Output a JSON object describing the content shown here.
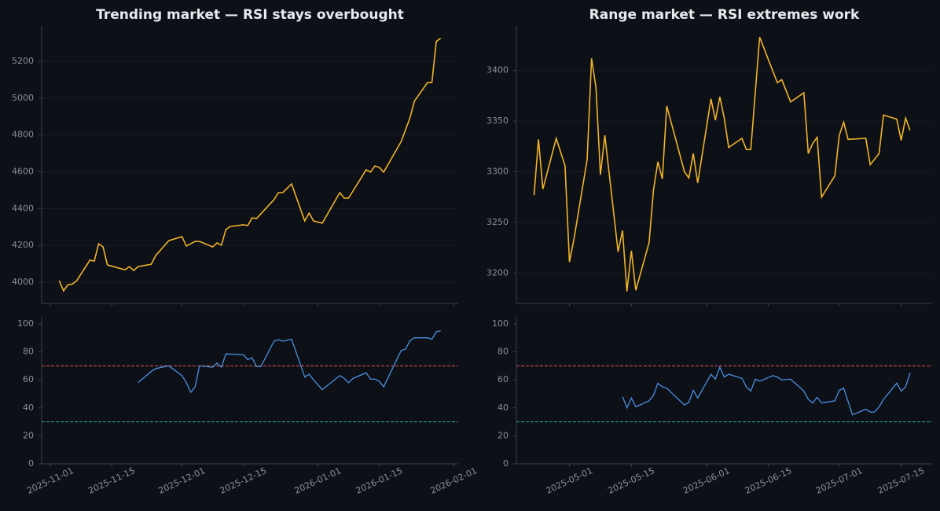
{
  "chart_data": [
    {
      "type": "line",
      "title": "Trending market — RSI stays overbought",
      "grid": true,
      "xlim": [
        "2025-10-30",
        "2026-02-02"
      ],
      "ylim": [
        3885,
        5392
      ],
      "yticks": [
        4000,
        4200,
        4400,
        4600,
        4800,
        5000,
        5200
      ],
      "x": [
        "2025-11-03",
        "2025-11-04",
        "2025-11-05",
        "2025-11-06",
        "2025-11-07",
        "2025-11-10",
        "2025-11-11",
        "2025-11-12",
        "2025-11-13",
        "2025-11-14",
        "2025-11-18",
        "2025-11-19",
        "2025-11-20",
        "2025-11-21",
        "2025-11-24",
        "2025-11-25",
        "2025-11-28",
        "2025-12-01",
        "2025-12-02",
        "2025-12-04",
        "2025-12-05",
        "2025-12-08",
        "2025-12-09",
        "2025-12-10",
        "2025-12-11",
        "2025-12-12",
        "2025-12-15",
        "2025-12-16",
        "2025-12-17",
        "2025-12-18",
        "2025-12-19",
        "2025-12-22",
        "2025-12-23",
        "2025-12-24",
        "2025-12-26",
        "2025-12-29",
        "2025-12-30",
        "2025-12-31",
        "2026-01-02",
        "2026-01-06",
        "2026-01-07",
        "2026-01-08",
        "2026-01-12",
        "2026-01-13",
        "2026-01-14",
        "2026-01-15",
        "2026-01-16",
        "2026-01-20",
        "2026-01-22",
        "2026-01-23",
        "2026-01-26",
        "2026-01-27",
        "2026-01-28",
        "2026-01-29"
      ],
      "series": [
        {
          "color": "#f0b429",
          "values": [
            4009,
            3953,
            3987,
            3990,
            4009,
            4120,
            4115,
            4209,
            4192,
            4094,
            4068,
            4085,
            4064,
            4085,
            4098,
            4145,
            4226,
            4248,
            4197,
            4222,
            4222,
            4192,
            4214,
            4201,
            4286,
            4303,
            4312,
            4308,
            4350,
            4346,
            4372,
            4449,
            4487,
            4487,
            4534,
            4333,
            4376,
            4333,
            4321,
            4487,
            4457,
            4457,
            4611,
            4598,
            4632,
            4624,
            4598,
            4765,
            4893,
            4983,
            5085,
            5085,
            5308,
            5325
          ]
        }
      ]
    },
    {
      "type": "line",
      "grid": false,
      "xlim": [
        "2025-10-30",
        "2026-02-02"
      ],
      "ylim": [
        0,
        105
      ],
      "yticks": [
        0,
        20,
        40,
        60,
        80,
        100
      ],
      "xticks": [
        "2025-11-01",
        "2025-11-15",
        "2025-12-01",
        "2025-12-15",
        "2026-01-01",
        "2026-01-15",
        "2026-02-01"
      ],
      "hlines": [
        {
          "value": 70,
          "color": "#e05a5a"
        },
        {
          "value": 30,
          "color": "#2bb39a"
        }
      ],
      "x": [
        "2025-11-21",
        "2025-11-24",
        "2025-11-25",
        "2025-11-28",
        "2025-12-01",
        "2025-12-02",
        "2025-12-03",
        "2025-12-04",
        "2025-12-05",
        "2025-12-08",
        "2025-12-09",
        "2025-12-10",
        "2025-12-11",
        "2025-12-15",
        "2025-12-16",
        "2025-12-17",
        "2025-12-18",
        "2025-12-19",
        "2025-12-22",
        "2025-12-23",
        "2025-12-24",
        "2025-12-26",
        "2025-12-29",
        "2025-12-30",
        "2025-12-31",
        "2026-01-02",
        "2026-01-06",
        "2026-01-07",
        "2026-01-08",
        "2026-01-09",
        "2026-01-12",
        "2026-01-13",
        "2026-01-14",
        "2026-01-15",
        "2026-01-16",
        "2026-01-20",
        "2026-01-21",
        "2026-01-22",
        "2026-01-23",
        "2026-01-26",
        "2026-01-27",
        "2026-01-28",
        "2026-01-29"
      ],
      "series": [
        {
          "color": "#4a90e2",
          "values": [
            58,
            66,
            68,
            70,
            63,
            58,
            51,
            55,
            70,
            69,
            72,
            69,
            78.5,
            78,
            74.5,
            75.7,
            69.5,
            69.5,
            87.6,
            88.7,
            87.6,
            89,
            62,
            64,
            60,
            53,
            63,
            61,
            58,
            61,
            65,
            60.5,
            60.5,
            59,
            55,
            81,
            82,
            88,
            90,
            90,
            89,
            94.4,
            95
          ]
        }
      ]
    },
    {
      "type": "line",
      "title": "Range market — RSI extremes work",
      "grid": true,
      "xlim": [
        "2025-04-19",
        "2025-07-22"
      ],
      "ylim": [
        3170,
        3444
      ],
      "yticks": [
        3200,
        3250,
        3300,
        3350,
        3400
      ],
      "x": [
        "2025-04-23",
        "2025-04-24",
        "2025-04-25",
        "2025-04-28",
        "2025-04-30",
        "2025-05-01",
        "2025-05-02",
        "2025-05-05",
        "2025-05-06",
        "2025-05-07",
        "2025-05-08",
        "2025-05-09",
        "2025-05-12",
        "2025-05-13",
        "2025-05-14",
        "2025-05-15",
        "2025-05-16",
        "2025-05-19",
        "2025-05-20",
        "2025-05-21",
        "2025-05-22",
        "2025-05-23",
        "2025-05-27",
        "2025-05-28",
        "2025-05-29",
        "2025-05-30",
        "2025-06-02",
        "2025-06-03",
        "2025-06-04",
        "2025-06-05",
        "2025-06-06",
        "2025-06-09",
        "2025-06-10",
        "2025-06-11",
        "2025-06-13",
        "2025-06-17",
        "2025-06-18",
        "2025-06-20",
        "2025-06-23",
        "2025-06-24",
        "2025-06-25",
        "2025-06-26",
        "2025-06-27",
        "2025-06-30",
        "2025-07-01",
        "2025-07-02",
        "2025-07-03",
        "2025-07-07",
        "2025-07-08",
        "2025-07-10",
        "2025-07-11",
        "2025-07-14",
        "2025-07-15",
        "2025-07-16",
        "2025-07-17"
      ],
      "series": [
        {
          "color": "#f0b429",
          "values": [
            3277,
            3332,
            3283,
            3333,
            3306,
            3211,
            3233,
            3312,
            3412,
            3383,
            3297,
            3336,
            3221,
            3242,
            3182,
            3222,
            3183,
            3230,
            3282,
            3310,
            3293,
            3365,
            3300,
            3294,
            3318,
            3289,
            3372,
            3351,
            3374,
            3353,
            3324,
            3333,
            3322,
            3322,
            3433,
            3388,
            3391,
            3369,
            3378,
            3318,
            3328,
            3334,
            3275,
            3296,
            3336,
            3349,
            3332,
            3333,
            3307,
            3318,
            3356,
            3352,
            3331,
            3353,
            3341
          ]
        }
      ]
    },
    {
      "type": "line",
      "grid": false,
      "xlim": [
        "2025-04-19",
        "2025-07-22"
      ],
      "ylim": [
        0,
        105
      ],
      "yticks": [
        0,
        20,
        40,
        60,
        80,
        100
      ],
      "xticks": [
        "2025-05-01",
        "2025-05-15",
        "2025-06-01",
        "2025-06-15",
        "2025-07-01",
        "2025-07-15"
      ],
      "hlines": [
        {
          "value": 70,
          "color": "#e05a5a"
        },
        {
          "value": 30,
          "color": "#2bb39a"
        }
      ],
      "x": [
        "2025-05-13",
        "2025-05-14",
        "2025-05-15",
        "2025-05-16",
        "2025-05-19",
        "2025-05-20",
        "2025-05-21",
        "2025-05-22",
        "2025-05-23",
        "2025-05-27",
        "2025-05-28",
        "2025-05-29",
        "2025-05-30",
        "2025-06-02",
        "2025-06-03",
        "2025-06-04",
        "2025-06-05",
        "2025-06-06",
        "2025-06-09",
        "2025-06-10",
        "2025-06-11",
        "2025-06-12",
        "2025-06-13",
        "2025-06-16",
        "2025-06-17",
        "2025-06-18",
        "2025-06-20",
        "2025-06-23",
        "2025-06-24",
        "2025-06-25",
        "2025-06-26",
        "2025-06-27",
        "2025-06-30",
        "2025-07-01",
        "2025-07-02",
        "2025-07-04",
        "2025-07-07",
        "2025-07-08",
        "2025-07-09",
        "2025-07-10",
        "2025-07-11",
        "2025-07-14",
        "2025-07-15",
        "2025-07-16",
        "2025-07-17"
      ],
      "series": [
        {
          "color": "#4a90e2",
          "values": [
            48,
            40,
            47,
            40.7,
            45,
            49,
            57.6,
            55,
            54,
            42,
            44,
            52.5,
            47,
            64,
            60.5,
            69,
            62,
            64,
            61,
            55,
            52,
            60.5,
            59,
            63,
            62,
            60,
            60.5,
            52,
            46,
            43.5,
            47.5,
            43.5,
            45,
            52.5,
            54,
            35,
            39,
            37,
            37,
            40.7,
            46,
            57.6,
            52,
            55,
            65
          ]
        }
      ]
    }
  ]
}
